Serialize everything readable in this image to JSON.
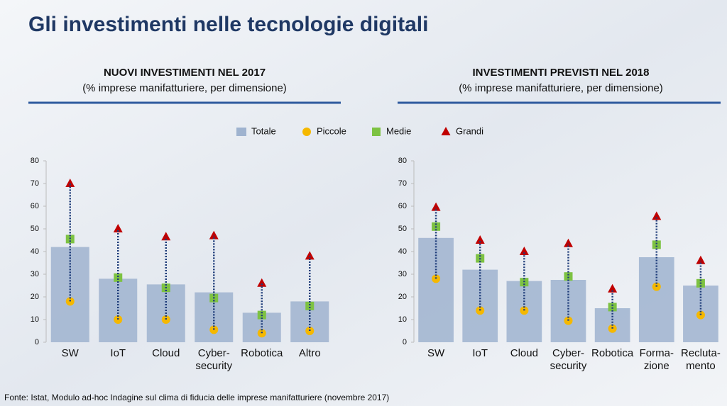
{
  "title": "Gli investimenti nelle tecnologie digitali",
  "source": "Fonte: Istat, Modulo ad-hoc Indagine sul clima di fiducia delle imprese manifatturiere (novembre 2017)",
  "chart_data": [
    {
      "type": "bar",
      "title": "NUOVI INVESTIMENTI NEL 2017",
      "subtitle": "(% imprese manifatturiere, per dimensione)",
      "categories": [
        "SW",
        "IoT",
        "Cloud",
        "Cyber-\nsecurity",
        "Robotica",
        "Altro"
      ],
      "ylim": [
        0,
        80
      ],
      "yticks": [
        0,
        10,
        20,
        30,
        40,
        50,
        60,
        70,
        80
      ],
      "series": [
        {
          "name": "Totale",
          "color": "#9fb3cf",
          "marker": "bar",
          "values": [
            42,
            28,
            25.5,
            22,
            13,
            18
          ]
        },
        {
          "name": "Piccole",
          "color": "#f5b800",
          "marker": "circle",
          "values": [
            18,
            10,
            10,
            5.5,
            4,
            5
          ]
        },
        {
          "name": "Medie",
          "color": "#7dc242",
          "marker": "square",
          "values": [
            45.5,
            28.5,
            24,
            19.5,
            12,
            16
          ]
        },
        {
          "name": "Grandi",
          "color": "#c00000",
          "marker": "triangle",
          "values": [
            70,
            50,
            46.5,
            47,
            26,
            38
          ]
        }
      ]
    },
    {
      "type": "bar",
      "title": "INVESTIMENTI PREVISTI NEL 2018",
      "subtitle": "(% imprese manifatturiere, per dimensione)",
      "categories": [
        "SW",
        "IoT",
        "Cloud",
        "Cyber-\nsecurity",
        "Robotica",
        "Forma-\nzione",
        "Recluta-\nmento"
      ],
      "ylim": [
        0,
        80
      ],
      "yticks": [
        0,
        10,
        20,
        30,
        40,
        50,
        60,
        70,
        80
      ],
      "series": [
        {
          "name": "Totale",
          "color": "#9fb3cf",
          "marker": "bar",
          "values": [
            46,
            32,
            27,
            27.5,
            15,
            37.5,
            25
          ]
        },
        {
          "name": "Piccole",
          "color": "#f5b800",
          "marker": "circle",
          "values": [
            28,
            14,
            14,
            9.5,
            6,
            24.5,
            12
          ]
        },
        {
          "name": "Medie",
          "color": "#7dc242",
          "marker": "square",
          "values": [
            51,
            37,
            26.5,
            29,
            15.5,
            43,
            26
          ]
        },
        {
          "name": "Grandi",
          "color": "#c00000",
          "marker": "triangle",
          "values": [
            59.5,
            45,
            40,
            43.5,
            23.5,
            55.5,
            36
          ]
        }
      ]
    }
  ]
}
